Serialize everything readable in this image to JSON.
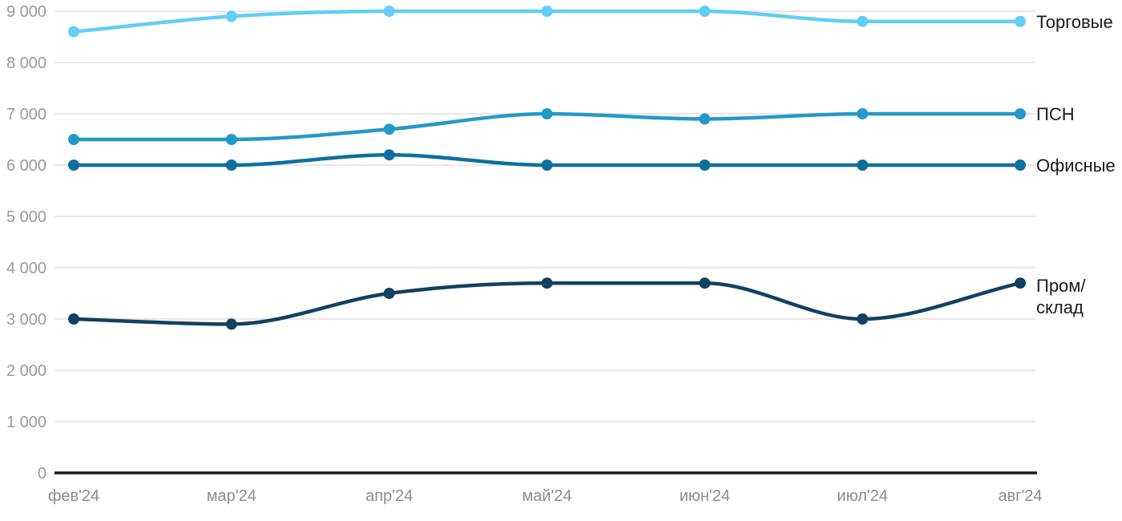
{
  "chart_data": {
    "type": "line",
    "categories": [
      "фев'24",
      "мар'24",
      "апр'24",
      "май'24",
      "июн'24",
      "июл'24",
      "авг'24"
    ],
    "series": [
      {
        "name": "Торговые",
        "slug": "torgovye",
        "color": "#62CDF5",
        "values": [
          8600,
          8900,
          9000,
          9000,
          9000,
          8800,
          8800
        ],
        "label_lines": [
          "Торговые"
        ]
      },
      {
        "name": "ПСН",
        "slug": "psn",
        "color": "#2499C9",
        "values": [
          6500,
          6500,
          6700,
          7000,
          6900,
          7000,
          7000
        ],
        "label_lines": [
          "ПСН"
        ]
      },
      {
        "name": "Офисные",
        "slug": "ofisnye",
        "color": "#0E6F9C",
        "values": [
          6000,
          6000,
          6200,
          6000,
          6000,
          6000,
          6000
        ],
        "label_lines": [
          "Офисные"
        ]
      },
      {
        "name": "Пром/склад",
        "slug": "prom-sklad",
        "color": "#14405F",
        "values": [
          3000,
          2900,
          3500,
          3700,
          3700,
          3000,
          3700
        ],
        "label_lines": [
          "Пром/",
          "склад"
        ]
      }
    ],
    "ylim": [
      0,
      9000
    ],
    "ytick_step": 1000,
    "ytick_labels": [
      "0",
      "1 000",
      "2 000",
      "3 000",
      "4 000",
      "5 000",
      "6 000",
      "7 000",
      "8 000",
      "9 000"
    ],
    "grid": true,
    "legend_position": "right-of-line-ends",
    "title": "",
    "xlabel": "",
    "ylabel": ""
  },
  "colors": {
    "background": "#FFFFFF",
    "gridline": "#E7E7E7",
    "axis_line": "#1A1A1A",
    "ytick_text": "#9A9A9A",
    "xtick_text": "#8C8C8C",
    "legend_text": "#1A1A1A"
  }
}
